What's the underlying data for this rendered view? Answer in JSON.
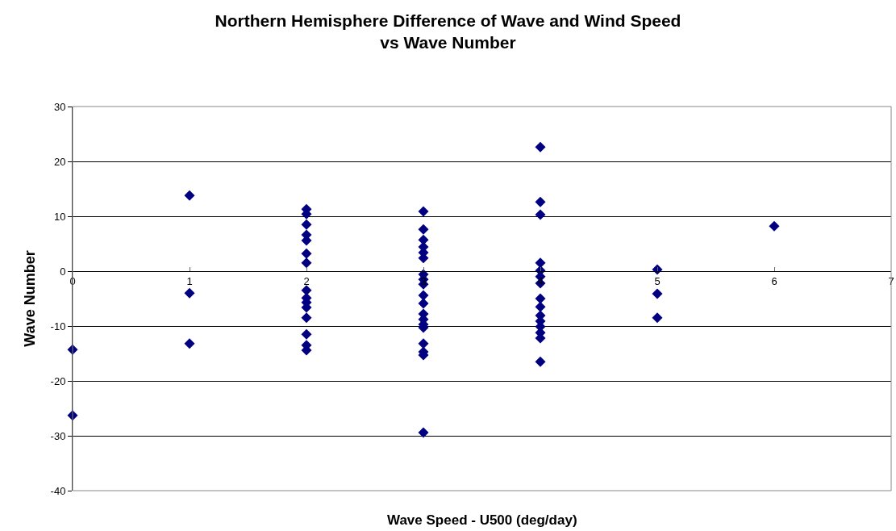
{
  "chart_data": {
    "type": "scatter",
    "title": "Northern Hemisphere Difference of Wave and Wind Speed\nvs Wave Number",
    "xlabel": "Wave Speed - U500 (deg/day)",
    "ylabel": "Wave Number",
    "series": [
      {
        "color": "#000080",
        "x": [
          0,
          0,
          1,
          1,
          1,
          2,
          2,
          2,
          2,
          2,
          2,
          2,
          2,
          2,
          2,
          2,
          2,
          2,
          2,
          2,
          3,
          3,
          3,
          3,
          3,
          3,
          3,
          3,
          3,
          3,
          3,
          3,
          3,
          3,
          3,
          3,
          3,
          3,
          3,
          4,
          4,
          4,
          4,
          4,
          4,
          4,
          4,
          4,
          4,
          4,
          4,
          4,
          4,
          4,
          5,
          5,
          5,
          6
        ],
        "values": [
          -14.3,
          -26.3,
          13.8,
          -4,
          -13.2,
          11.3,
          10.4,
          8.5,
          6.6,
          5.6,
          3.2,
          1.5,
          -3.5,
          -4.9,
          -5.7,
          -6.6,
          -8.5,
          -11.5,
          -13.5,
          -14.4,
          10.9,
          7.6,
          5.7,
          4.4,
          3.4,
          2.4,
          -0.6,
          -1.5,
          -2.4,
          -4.4,
          -5.9,
          -7.8,
          -8.8,
          -9.7,
          -10.3,
          -13.2,
          -14.7,
          -15.3,
          -29.4,
          22.6,
          12.6,
          10.3,
          1.5,
          0.1,
          -1,
          -2.2,
          -5,
          -6.5,
          -8.1,
          -9.1,
          -10.1,
          -11.2,
          -12.2,
          -16.5,
          0.3,
          -4.1,
          -8.5,
          8.2
        ]
      }
    ],
    "marker": "diamond",
    "xlim": [
      0,
      7
    ],
    "xticks": [
      0,
      1,
      2,
      3,
      4,
      5,
      6,
      7
    ],
    "ylim": [
      -40,
      30
    ],
    "yticks": [
      -40,
      -30,
      -20,
      -10,
      0,
      10,
      20,
      30
    ],
    "grid": "y"
  }
}
